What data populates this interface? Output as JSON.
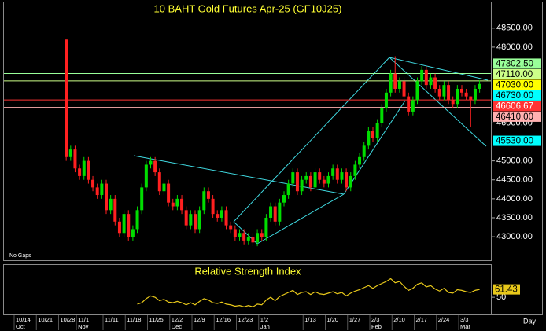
{
  "chart_data": [
    {
      "type": "candlestick",
      "title": "10 BAHT Gold Futures Apr-25 (GF10J25)",
      "note": "No Gaps",
      "x_label": "Day",
      "up_color": "#00dd00",
      "down_color": "#ff2020",
      "ylim": [
        42380,
        49180
      ],
      "yticks": [
        {
          "value": 48500,
          "label": "48500.00"
        },
        {
          "value": 48000,
          "label": "48000.00"
        },
        {
          "value": 46000,
          "label": "46000.00"
        },
        {
          "value": 45000,
          "label": "45000.00"
        },
        {
          "value": 44500,
          "label": "44500.00"
        },
        {
          "value": 44000,
          "label": "44000.00"
        },
        {
          "value": 43500,
          "label": "43500.00"
        },
        {
          "value": 43000,
          "label": "43000.00"
        }
      ],
      "levels": [
        {
          "value": 47302.5,
          "label": "47302.50",
          "color": "#99ff99",
          "text_color": "#000000",
          "line": true
        },
        {
          "value": 47110,
          "label": "47110.00",
          "color": "#ccff88",
          "text_color": "#000000",
          "line": true
        },
        {
          "value": 47030,
          "label": "47030.00",
          "color": "#ffff00",
          "text_color": "#000000",
          "line": false
        },
        {
          "value": 46730,
          "label": "46730.00",
          "color": "#00ffff",
          "text_color": "#000000",
          "line": false
        },
        {
          "value": 46606.67,
          "label": "46606.67",
          "color": "#ff3333",
          "text_color": "#ffffff",
          "line": true
        },
        {
          "value": 46410,
          "label": "46410.00",
          "color": "#ffb0b0",
          "text_color": "#000000",
          "line": true
        },
        {
          "value": 45530,
          "label": "45530.00",
          "color": "#00ffff",
          "text_color": "#000000",
          "line": false
        }
      ],
      "categories": [
        "10/14",
        null,
        null,
        null,
        null,
        "10/21",
        null,
        null,
        null,
        null,
        "10/28",
        null,
        null,
        null,
        "11/1",
        null,
        null,
        null,
        null,
        null,
        "11/11",
        null,
        null,
        null,
        null,
        "11/18",
        null,
        null,
        null,
        null,
        "11/25",
        null,
        null,
        null,
        null,
        "12/2",
        null,
        null,
        null,
        null,
        "12/9",
        null,
        null,
        null,
        null,
        "12/16",
        null,
        null,
        null,
        null,
        "12/23",
        null,
        null,
        null,
        null,
        "1/2",
        null,
        null,
        null,
        null,
        null,
        null,
        null,
        null,
        null,
        "1/13",
        null,
        null,
        null,
        null,
        "1/20",
        null,
        null,
        null,
        null,
        "1/27",
        null,
        null,
        null,
        null,
        "2/3",
        null,
        null,
        null,
        null,
        "2/10",
        null,
        null,
        null,
        null,
        "2/17",
        null,
        null,
        null,
        null,
        "2/24",
        null,
        null,
        null,
        null,
        "3/3",
        null,
        null,
        null,
        null
      ],
      "month_categories": [
        "Oct",
        null,
        null,
        null,
        null,
        null,
        null,
        null,
        null,
        null,
        null,
        null,
        null,
        null,
        "Nov",
        null,
        null,
        null,
        null,
        null,
        null,
        null,
        null,
        null,
        null,
        null,
        null,
        null,
        null,
        null,
        null,
        null,
        null,
        null,
        null,
        "Dec",
        null,
        null,
        null,
        null,
        null,
        null,
        null,
        null,
        null,
        null,
        null,
        null,
        null,
        null,
        null,
        null,
        null,
        null,
        null,
        "Jan",
        null,
        null,
        null,
        null,
        null,
        null,
        null,
        null,
        null,
        null,
        null,
        null,
        null,
        null,
        null,
        null,
        null,
        null,
        null,
        null,
        null,
        null,
        null,
        null,
        "Feb",
        null,
        null,
        null,
        null,
        null,
        null,
        null,
        null,
        null,
        null,
        null,
        null,
        null,
        null,
        null,
        null,
        null,
        null,
        null,
        "Mar",
        null,
        null,
        null,
        null
      ],
      "open": [
        null,
        null,
        null,
        null,
        null,
        null,
        null,
        null,
        null,
        null,
        null,
        48200,
        45100,
        45300,
        44800,
        44600,
        45000,
        44500,
        44300,
        44100,
        44400,
        43700,
        44000,
        43400,
        43100,
        43600,
        43000,
        43200,
        43700,
        44300,
        44900,
        45000,
        44700,
        44200,
        44400,
        43900,
        43800,
        44000,
        43700,
        43300,
        43600,
        43200,
        43700,
        44200,
        44000,
        43600,
        43500,
        43700,
        43300,
        43200,
        43000,
        43100,
        42900,
        43000,
        42850,
        43100,
        43000,
        43500,
        43800,
        43400,
        43900,
        44100,
        44400,
        44700,
        44200,
        44500,
        44600,
        44300,
        44700,
        44500,
        44400,
        44600,
        44800,
        44500,
        44700,
        44300,
        44600,
        44900,
        45100,
        45400,
        45800,
        45600,
        46000,
        46400,
        46800,
        47300,
        46900,
        47100,
        46700,
        46300,
        46600,
        47100,
        47400,
        47000,
        47200,
        46900,
        46700,
        47000,
        46600,
        46500,
        46900,
        46800,
        46700,
        46600,
        46900
      ],
      "high": [
        null,
        null,
        null,
        null,
        null,
        null,
        null,
        null,
        null,
        null,
        null,
        48200,
        45400,
        45400,
        44900,
        45100,
        45100,
        44600,
        44400,
        44500,
        44500,
        44100,
        44100,
        43500,
        43700,
        43700,
        43300,
        43800,
        44400,
        45000,
        45100,
        45100,
        44800,
        44500,
        44500,
        44000,
        44100,
        44100,
        43800,
        43700,
        43700,
        43800,
        44300,
        44300,
        44100,
        43700,
        43800,
        43800,
        43400,
        43300,
        43200,
        43200,
        43100,
        43100,
        43200,
        43200,
        43600,
        43900,
        43900,
        44000,
        44200,
        44500,
        44800,
        44800,
        44600,
        44700,
        44700,
        44800,
        44800,
        44600,
        44700,
        44900,
        44900,
        44800,
        44800,
        44700,
        45000,
        45200,
        45500,
        45900,
        45900,
        46100,
        46500,
        46900,
        47400,
        47760,
        47200,
        47200,
        46800,
        46700,
        47200,
        47500,
        47500,
        47300,
        47300,
        47000,
        47100,
        47100,
        46700,
        47000,
        47000,
        46900,
        46700,
        47000,
        47130
      ],
      "low": [
        null,
        null,
        null,
        null,
        null,
        null,
        null,
        null,
        null,
        null,
        null,
        45000,
        45000,
        44700,
        44500,
        44500,
        44400,
        44200,
        44000,
        44000,
        43600,
        43600,
        43300,
        43000,
        43000,
        42900,
        42900,
        43100,
        43600,
        44200,
        44800,
        44600,
        44100,
        44100,
        43800,
        43700,
        43700,
        43600,
        43200,
        43200,
        43100,
        43100,
        43600,
        43900,
        43500,
        43400,
        43400,
        43200,
        43100,
        42900,
        42900,
        42800,
        42800,
        42750,
        42750,
        42900,
        42900,
        43400,
        43300,
        43300,
        43800,
        44000,
        44300,
        44100,
        44100,
        44400,
        44200,
        44200,
        44400,
        44300,
        44300,
        44500,
        44400,
        44400,
        44200,
        44200,
        44500,
        44800,
        45000,
        45300,
        45500,
        45500,
        45900,
        46300,
        46700,
        46800,
        46800,
        46600,
        46200,
        46200,
        46500,
        47000,
        46900,
        46900,
        46800,
        46600,
        46600,
        46500,
        46400,
        46400,
        46700,
        46600,
        45900,
        46500,
        46800
      ],
      "close": [
        null,
        null,
        null,
        null,
        null,
        null,
        null,
        null,
        null,
        null,
        null,
        45100,
        45300,
        44800,
        44600,
        45000,
        44500,
        44300,
        44100,
        44400,
        43700,
        44000,
        43400,
        43100,
        43600,
        43000,
        43200,
        43700,
        44300,
        44900,
        45000,
        44700,
        44200,
        44400,
        43900,
        43800,
        44000,
        43700,
        43300,
        43600,
        43200,
        43700,
        44200,
        44000,
        43600,
        43500,
        43700,
        43300,
        43200,
        43000,
        43100,
        42900,
        43000,
        42850,
        43100,
        43000,
        43500,
        43800,
        43400,
        43900,
        44100,
        44400,
        44700,
        44200,
        44500,
        44600,
        44300,
        44700,
        44500,
        44400,
        44600,
        44800,
        44500,
        44700,
        44300,
        44600,
        44900,
        45100,
        45400,
        45800,
        45600,
        46000,
        46400,
        46800,
        47300,
        46900,
        47100,
        46700,
        46300,
        46600,
        47100,
        47400,
        47000,
        47200,
        46900,
        46700,
        47000,
        46600,
        46500,
        46900,
        46800,
        46700,
        46600,
        46900,
        47030
      ]
    },
    {
      "type": "line",
      "title": "Relative Strength Index",
      "color": "#e8c81a",
      "ylim": [
        25,
        97
      ],
      "yticks": [
        50
      ],
      "values": [
        null,
        null,
        null,
        null,
        null,
        null,
        null,
        null,
        null,
        null,
        null,
        null,
        null,
        null,
        null,
        null,
        null,
        null,
        null,
        null,
        null,
        null,
        null,
        null,
        null,
        null,
        null,
        40,
        42,
        48,
        52,
        50,
        45,
        47,
        43,
        42,
        44,
        42,
        39,
        42,
        39,
        44,
        48,
        46,
        42,
        41,
        43,
        40,
        39,
        37,
        38,
        36,
        38,
        36,
        40,
        39,
        46,
        50,
        45,
        51,
        54,
        57,
        60,
        54,
        57,
        58,
        54,
        58,
        55,
        54,
        56,
        58,
        55,
        57,
        52,
        56,
        59,
        61,
        64,
        67,
        63,
        67,
        70,
        73,
        77,
        71,
        73,
        66,
        60,
        63,
        69,
        71,
        65,
        67,
        62,
        59,
        63,
        57,
        56,
        61,
        60,
        58,
        57,
        60,
        61.43
      ]
    }
  ]
}
